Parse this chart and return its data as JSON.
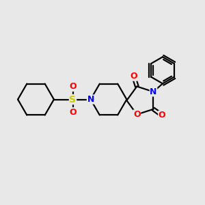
{
  "bg_color": "#e8e8e8",
  "bond_color": "#000000",
  "N_color": "#0000ff",
  "O_color": "#ff0000",
  "S_color": "#cccc00",
  "figsize": [
    3.0,
    3.0
  ],
  "dpi": 100,
  "xlim": [
    0,
    10
  ],
  "ylim": [
    0,
    10
  ]
}
